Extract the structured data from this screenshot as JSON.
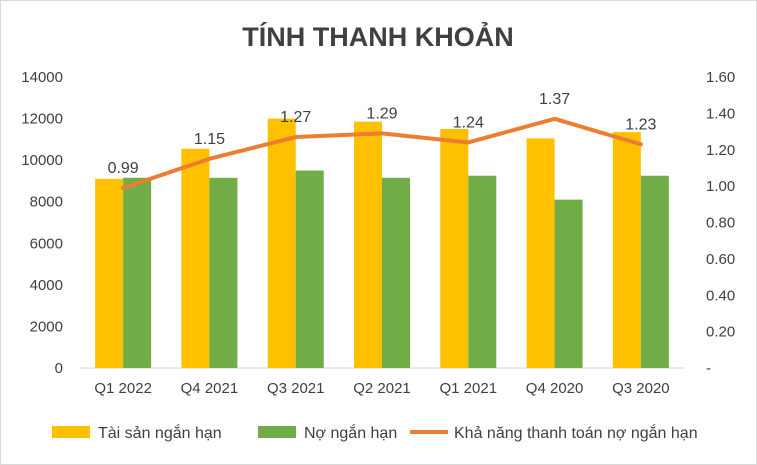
{
  "chart_data": {
    "type": "bar",
    "title": "TÍNH THANH KHOẢN",
    "categories": [
      "Q1 2022",
      "Q4 2021",
      "Q3 2021",
      "Q2 2021",
      "Q1 2021",
      "Q4 2020",
      "Q3 2020"
    ],
    "series": [
      {
        "name": "Tài sản ngắn hạn",
        "type": "bar",
        "axis": "left",
        "color": "#FFC000",
        "values": [
          9100,
          10550,
          12000,
          11850,
          11500,
          11050,
          11350
        ]
      },
      {
        "name": "Nợ ngắn hạn",
        "type": "bar",
        "axis": "left",
        "color": "#70AD47",
        "values": [
          9150,
          9150,
          9500,
          9150,
          9250,
          8100,
          9250
        ]
      },
      {
        "name": "Khả năng thanh toán nợ ngắn hạn",
        "type": "line",
        "axis": "right",
        "color": "#ED7D31",
        "values": [
          0.99,
          1.15,
          1.27,
          1.29,
          1.24,
          1.37,
          1.23
        ],
        "data_labels": [
          "0.99",
          "1.15",
          "1.27",
          "1.29",
          "1.24",
          "1.37",
          "1.23"
        ]
      }
    ],
    "y_left": {
      "ylim": [
        0,
        14000
      ],
      "ticks": [
        "0",
        "2000",
        "4000",
        "6000",
        "8000",
        "10000",
        "12000",
        "14000"
      ]
    },
    "y_right": {
      "ylim": [
        0,
        1.6
      ],
      "ticks": [
        "-",
        "0.20",
        "0.40",
        "0.60",
        "0.80",
        "1.00",
        "1.20",
        "1.40",
        "1.60"
      ]
    },
    "grid": false,
    "legend_position": "bottom"
  }
}
